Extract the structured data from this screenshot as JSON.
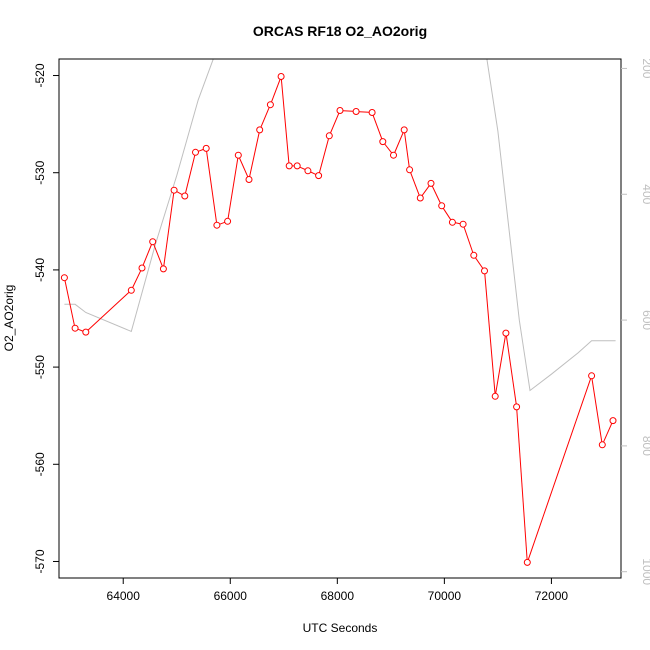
{
  "chart_data": {
    "type": "line",
    "title": "ORCAS RF18 O2_AO2orig",
    "xlabel": "UTC Seconds",
    "ylabel": "O2_AO2orig",
    "xlim": [
      62800,
      73300
    ],
    "ylim": [
      -571.7,
      -518.3
    ],
    "x_ticks": [
      64000,
      66000,
      68000,
      70000,
      72000
    ],
    "x_tick_labels": [
      "64000",
      "66000",
      "68000",
      "70000",
      "72000"
    ],
    "y_ticks": [
      -570,
      -560,
      -550,
      -540,
      -530,
      -520
    ],
    "y_tick_labels": [
      "-570",
      "-560",
      "-550",
      "-540",
      "-530",
      "-520"
    ],
    "y2_lim": [
      1010,
      185
    ],
    "y2_ticks": [
      200,
      400,
      600,
      800,
      1000
    ],
    "y2_tick_labels": [
      "200",
      "400",
      "600",
      "800",
      "1000"
    ],
    "colors": {
      "series": "#ff0000",
      "secondary": "#bfbfbf"
    },
    "series": [
      {
        "x": [
          62900,
          63100,
          63300,
          64150,
          64350,
          64550,
          64750,
          64950,
          65150,
          65350,
          65550,
          65750,
          65950,
          66150,
          66350,
          66550,
          66750,
          66950,
          67100,
          67250,
          67450,
          67650,
          67850,
          68050,
          68350,
          68650,
          68850,
          69050,
          69250,
          69350,
          69550,
          69750,
          69950,
          70150,
          70350,
          70550,
          70750,
          70950,
          71150,
          71350,
          71550,
          72750,
          72950,
          73150
        ],
        "y": [
          -540.8,
          -546.0,
          -546.4,
          -542.1,
          -539.8,
          -537.1,
          -539.9,
          -531.8,
          -532.4,
          -527.9,
          -527.5,
          -535.4,
          -535.0,
          -528.2,
          -530.7,
          -525.6,
          -523.0,
          -520.1,
          -529.3,
          -529.3,
          -529.8,
          -530.3,
          -526.2,
          -523.6,
          -523.7,
          -523.8,
          -526.8,
          -528.2,
          -525.6,
          -529.7,
          -532.6,
          -531.1,
          -533.4,
          -535.1,
          -535.3,
          -538.5,
          -540.1,
          -553.0,
          -546.5,
          -554.1,
          -570.1,
          -550.9,
          -558.0,
          -555.5
        ]
      },
      {
        "y_axis": "right",
        "x": [
          62900,
          63100,
          63300,
          64150,
          64600,
          65000,
          65400,
          65900,
          66500,
          66520,
          66800,
          67000,
          67500,
          68000,
          68500,
          68800,
          69000,
          69500,
          70000,
          70500,
          70750,
          71000,
          71200,
          71400,
          71600,
          72000,
          72500,
          72750,
          73000,
          73200
        ],
        "y": [
          575,
          575,
          588,
          618,
          480,
          370,
          250,
          135,
          122,
          165,
          165,
          122,
          122,
          122,
          122,
          160,
          122,
          122,
          122,
          122,
          160,
          300,
          450,
          600,
          712,
          686,
          652,
          633,
          633,
          633
        ]
      }
    ]
  }
}
